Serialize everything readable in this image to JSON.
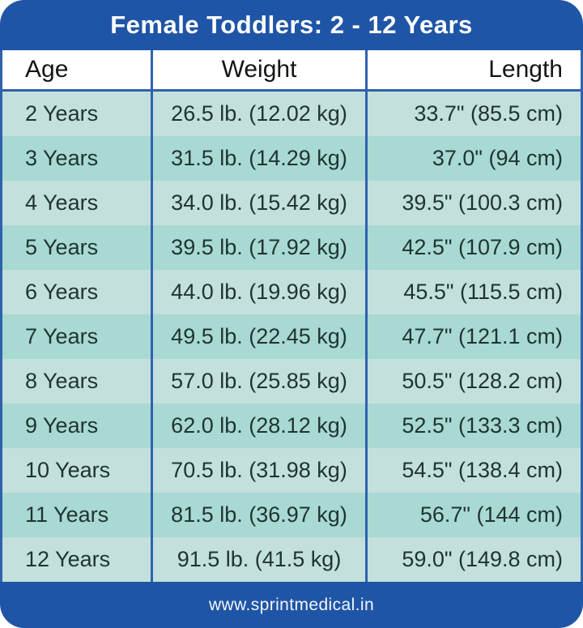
{
  "title": "Female Toddlers: 2 - 12 Years",
  "footer": {
    "url": "www.sprintmedical.in"
  },
  "colors": {
    "header_footer_blue": "#1F55A6",
    "separator_blue": "#2F62AD",
    "row_light_teal": "#C3E0DC",
    "row_dark_teal": "#A8D9D3",
    "cell_text": "#1F3333"
  },
  "chart_data": {
    "type": "table",
    "title": "Female Toddlers: 2 - 12 Years",
    "columns": [
      "Age",
      "Weight",
      "Length"
    ],
    "rows": [
      [
        "2 Years",
        "26.5 lb. (12.02 kg)",
        "33.7\" (85.5 cm)"
      ],
      [
        "3 Years",
        "31.5 lb. (14.29 kg)",
        "37.0\" (94 cm)"
      ],
      [
        "4 Years",
        "34.0 lb. (15.42 kg)",
        "39.5\" (100.3 cm)"
      ],
      [
        "5 Years",
        "39.5 lb. (17.92 kg)",
        "42.5\" (107.9 cm)"
      ],
      [
        "6 Years",
        "44.0 lb. (19.96 kg)",
        "45.5\" (115.5 cm)"
      ],
      [
        "7 Years",
        "49.5 lb. (22.45 kg)",
        "47.7\" (121.1 cm)"
      ],
      [
        "8 Years",
        "57.0 lb. (25.85 kg)",
        "50.5\" (128.2 cm)"
      ],
      [
        "9 Years",
        "62.0 lb. (28.12 kg)",
        "52.5\" (133.3 cm)"
      ],
      [
        "10 Years",
        "70.5 lb. (31.98 kg)",
        "54.5\" (138.4 cm)"
      ],
      [
        "11 Years",
        "81.5 lb. (36.97 kg)",
        "56.7\" (144 cm)"
      ],
      [
        "12 Years",
        "91.5 lb. (41.5 kg)",
        "59.0\" (149.8 cm)"
      ]
    ]
  }
}
